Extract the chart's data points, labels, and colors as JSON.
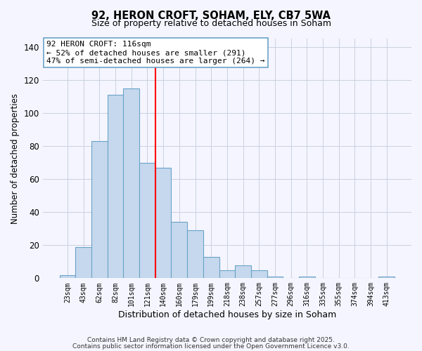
{
  "title": "92, HERON CROFT, SOHAM, ELY, CB7 5WA",
  "subtitle": "Size of property relative to detached houses in Soham",
  "xlabel": "Distribution of detached houses by size in Soham",
  "ylabel": "Number of detached properties",
  "bar_labels": [
    "23sqm",
    "43sqm",
    "62sqm",
    "82sqm",
    "101sqm",
    "121sqm",
    "140sqm",
    "160sqm",
    "179sqm",
    "199sqm",
    "218sqm",
    "238sqm",
    "257sqm",
    "277sqm",
    "296sqm",
    "316sqm",
    "335sqm",
    "355sqm",
    "374sqm",
    "394sqm",
    "413sqm"
  ],
  "bar_values": [
    2,
    19,
    83,
    111,
    115,
    70,
    67,
    34,
    29,
    13,
    5,
    8,
    5,
    1,
    0,
    1,
    0,
    0,
    0,
    0,
    1
  ],
  "bar_color": "#c5d8ed",
  "bar_edge_color": "#6aa3c8",
  "vline_color": "red",
  "vline_position": 5.5,
  "annotation_line1": "92 HERON CROFT: 116sqm",
  "annotation_line2": "← 52% of detached houses are smaller (291)",
  "annotation_line3": "47% of semi-detached houses are larger (264) →",
  "annotation_box_color": "white",
  "annotation_box_edge_color": "#6aa3c8",
  "ylim": [
    0,
    145
  ],
  "yticks": [
    0,
    20,
    40,
    60,
    80,
    100,
    120,
    140
  ],
  "footnote1": "Contains HM Land Registry data © Crown copyright and database right 2025.",
  "footnote2": "Contains public sector information licensed under the Open Government Licence v3.0.",
  "background_color": "#f5f5ff",
  "grid_color": "#c8d0df"
}
